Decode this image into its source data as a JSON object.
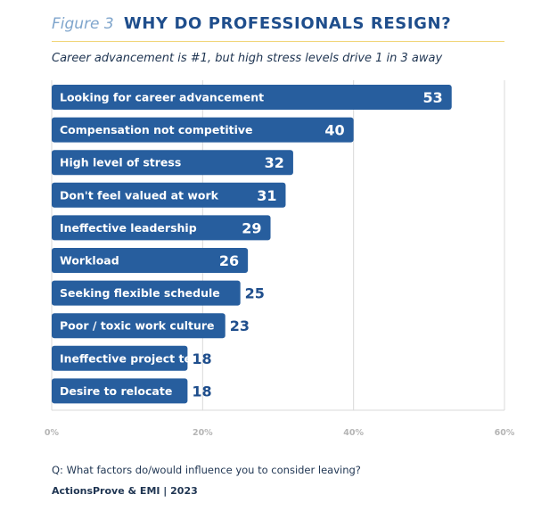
{
  "header": {
    "figure_label": "Figure 3",
    "title": "WHY DO PROFESSIONALS RESIGN?",
    "subtitle": "Career advancement is #1, but high stress levels drive 1 in 3 away"
  },
  "footer": {
    "question": "Q: What factors do/would influence you to consider leaving?",
    "source": "ActionsProve & EMI | 2023"
  },
  "colors": {
    "bar": "#275e9e",
    "bar_label_text": "#ffffff",
    "value_text": "#1f4e8c",
    "title": "#1f4e8c",
    "figure_label": "#7fa5cc",
    "rule": "#f1d67a",
    "grid": "#d9d9d9",
    "tick_text": "#b5b5b5"
  },
  "chart_data": {
    "type": "bar",
    "orientation": "horizontal",
    "categories": [
      "Looking for career advancement",
      "Compensation not competitive",
      "High level of stress",
      "Don't feel valued at work",
      "Ineffective leadership",
      "Workload",
      "Seeking flexible schedule",
      "Poor / toxic work culture",
      "Ineffective project team",
      "Desire to relocate"
    ],
    "values": [
      53,
      40,
      32,
      31,
      29,
      26,
      25,
      23,
      18,
      18
    ],
    "unit": "%",
    "xlim": [
      0,
      60
    ],
    "xticks": [
      0,
      20,
      40,
      60
    ],
    "xtick_labels": [
      "0%",
      "20%",
      "40%",
      "60%"
    ],
    "title": "WHY DO PROFESSIONALS RESIGN?",
    "xlabel": "",
    "ylabel": "",
    "grid": true,
    "legend": "none"
  }
}
